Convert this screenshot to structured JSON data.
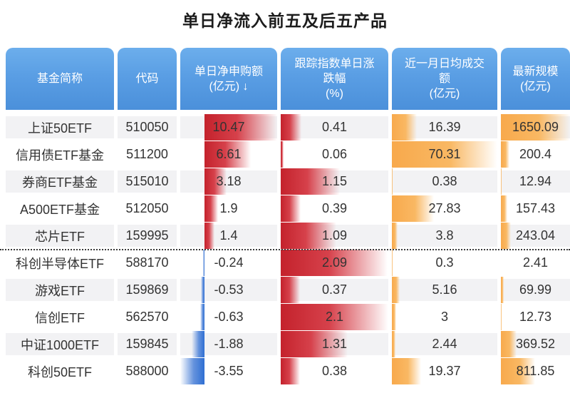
{
  "title": "单日净流入前五及后五产品",
  "colors": {
    "header_gradient_top": "#6caeec",
    "header_gradient_bottom": "#4b90da",
    "positive_bar_red": "#d0303a",
    "negative_bar_blue": "#2f6fd3",
    "volume_bar_orange": "#f8ad52",
    "row_alt_background": "#f2f2f4",
    "title_text": "#1c1c1c",
    "body_text": "#333333"
  },
  "chart_data": {
    "type": "table",
    "title": "单日净流入前五及后五产品",
    "divider_after_row": 5,
    "columns": [
      {
        "key": "name",
        "label_lines": [
          "基金简称"
        ],
        "sortable": false
      },
      {
        "key": "code",
        "label_lines": [
          "代码"
        ],
        "sortable": false
      },
      {
        "key": "net_flow",
        "label_lines": [
          "单日净申购额",
          "(亿元)"
        ],
        "sortable": true,
        "sort_indicator": "↓",
        "bar_style": "diverging-red-blue"
      },
      {
        "key": "index_change",
        "label_lines": [
          "跟踪指数单日涨",
          "跌幅",
          "(%)"
        ],
        "sortable": false,
        "bar_style": "red"
      },
      {
        "key": "avg_turnover",
        "label_lines": [
          "近一月日均成交",
          "额",
          "(亿元)"
        ],
        "sortable": false,
        "bar_style": "orange"
      },
      {
        "key": "latest_scale",
        "label_lines": [
          "最新规模",
          "(亿元)"
        ],
        "sortable": false,
        "bar_style": "orange"
      }
    ],
    "rows": [
      {
        "name": "上证50ETF",
        "code": "510050",
        "net_flow": 10.47,
        "index_change": 0.41,
        "avg_turnover": 16.39,
        "latest_scale": 1650.09
      },
      {
        "name": "信用债ETF基金",
        "code": "511200",
        "net_flow": 6.61,
        "index_change": 0.06,
        "avg_turnover": 70.31,
        "latest_scale": 200.4
      },
      {
        "name": "券商ETF基金",
        "code": "515010",
        "net_flow": 3.18,
        "index_change": 1.15,
        "avg_turnover": 0.38,
        "latest_scale": 12.94
      },
      {
        "name": "A500ETF基金",
        "code": "512050",
        "net_flow": 1.9,
        "index_change": 0.39,
        "avg_turnover": 27.83,
        "latest_scale": 157.43
      },
      {
        "name": "芯片ETF",
        "code": "159995",
        "net_flow": 1.4,
        "index_change": 1.09,
        "avg_turnover": 3.8,
        "latest_scale": 243.04
      },
      {
        "name": "科创半导体ETF",
        "code": "588170",
        "net_flow": -0.24,
        "index_change": 2.09,
        "avg_turnover": 0.3,
        "latest_scale": 2.41
      },
      {
        "name": "游戏ETF",
        "code": "159869",
        "net_flow": -0.53,
        "index_change": 0.37,
        "avg_turnover": 5.16,
        "latest_scale": 69.99
      },
      {
        "name": "信创ETF",
        "code": "562570",
        "net_flow": -0.63,
        "index_change": 2.1,
        "avg_turnover": 3,
        "latest_scale": 12.73
      },
      {
        "name": "中证1000ETF",
        "code": "159845",
        "net_flow": -1.88,
        "index_change": 1.31,
        "avg_turnover": 2.44,
        "latest_scale": 369.52
      },
      {
        "name": "科创50ETF",
        "code": "588000",
        "net_flow": -3.55,
        "index_change": 0.38,
        "avg_turnover": 19.37,
        "latest_scale": 811.85
      }
    ]
  }
}
